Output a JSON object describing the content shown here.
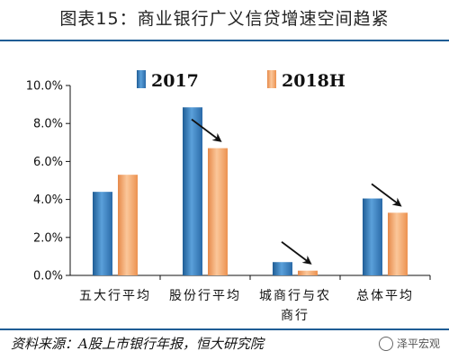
{
  "header": {
    "title": "图表15：商业银行广义信贷增速空间趋紧"
  },
  "footer": {
    "source": "资料来源：A股上市银行年报，恒大研究院",
    "watermark": "泽平宏观"
  },
  "colors": {
    "series_2017": "#3a7fc0",
    "series_2018H": "#f0a060",
    "rule": "#1f5d95"
  },
  "chart_data": {
    "type": "bar",
    "title": "",
    "xlabel": "",
    "ylabel": "",
    "categories": [
      [
        "五大行平均"
      ],
      [
        "股份行平均"
      ],
      [
        "城商行与农",
        "商行"
      ],
      [
        "总体平均"
      ]
    ],
    "series": [
      {
        "name": "2017",
        "values": [
          4.4,
          8.85,
          0.7,
          4.05
        ]
      },
      {
        "name": "2018H",
        "values": [
          5.3,
          6.7,
          0.25,
          3.3
        ]
      }
    ],
    "ylim": [
      0,
      10
    ],
    "yticks": [
      "0.0%",
      "2.0%",
      "4.0%",
      "6.0%",
      "8.0%",
      "10.0%"
    ],
    "legend_position": "top",
    "grid": false,
    "annotations": "down-right arrows above the bars of 股份行平均, 城商行与农商行 and 总体平均"
  }
}
